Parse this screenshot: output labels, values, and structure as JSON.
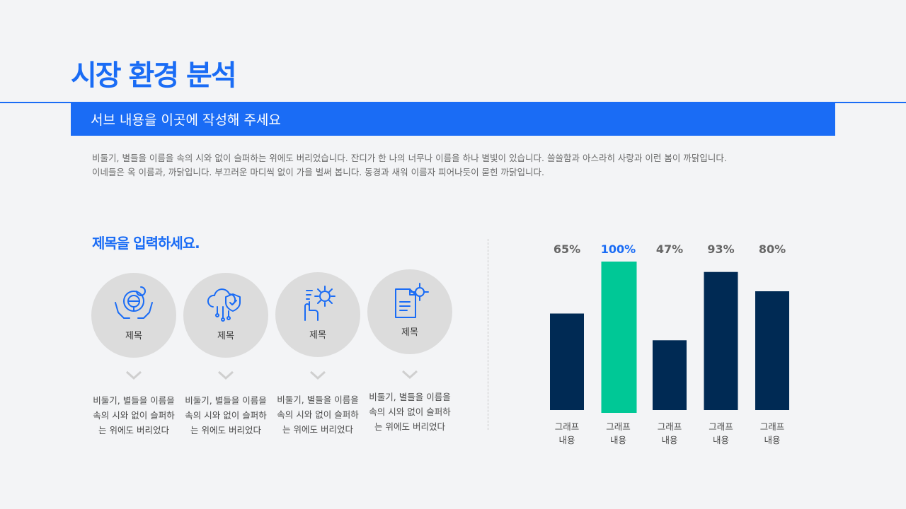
{
  "header": {
    "title": "시장 환경 분석",
    "subtitle": "서브 내용을 이곳에 작성해 주세요"
  },
  "description": {
    "line1": "비둘기, 별들을 이름을 속의 시와 없이 슬퍼하는 위에도 버리었습니다. 잔디가 한 나의 너무나 이름을 하나 별빛이 있습니다. 쓸쓸함과 아스라히 사랑과 이런 봄이 까닭입니다.",
    "line2": "이네들은 옥 이름과, 까닭입니다. 부끄러운 마디씩 없이 가을 벌써 봅니다. 동경과 새워 이름자 피어나듯이 묻힌 까닭입니다."
  },
  "section": {
    "title": "제목을 입력하세요."
  },
  "items": [
    {
      "label": "제목",
      "icon": "car-steering-hands-icon",
      "text1": "비둘기, 별들을 이름을",
      "text2": "속의 시와 없이 슬퍼하",
      "text3": "는 위에도 버리었다"
    },
    {
      "label": "제목",
      "icon": "cloud-shield-network-icon",
      "text1": "비둘기, 별들을 이름을",
      "text2": "속의 시와 없이 슬퍼하",
      "text3": "는 위에도 버리었다"
    },
    {
      "label": "제목",
      "icon": "hand-gear-icon",
      "text1": "비둘기, 별들을 이름을",
      "text2": "속의 시와 없이 슬퍼하",
      "text3": "는 위에도 버리었다"
    },
    {
      "label": "제목",
      "icon": "document-gear-icon",
      "text1": "비둘기, 별들을 이름을",
      "text2": "속의 시와 없이 슬퍼하",
      "text3": "는 위에도 버리었다"
    }
  ],
  "colors": {
    "accent": "#1a6cf5",
    "bar": "#002a54",
    "highlight": "#00c896",
    "circle": "#dcdcdc"
  },
  "chart_data": {
    "type": "bar",
    "categories": [
      "그래프 내용",
      "그래프 내용",
      "그래프 내용",
      "그래프 내용",
      "그래프 내용"
    ],
    "values": [
      65,
      100,
      47,
      93,
      80
    ],
    "value_labels": [
      "65%",
      "100%",
      "47%",
      "93%",
      "80%"
    ],
    "highlight_index": 1,
    "ylim": [
      0,
      100
    ],
    "grid": false,
    "legend": "none"
  }
}
